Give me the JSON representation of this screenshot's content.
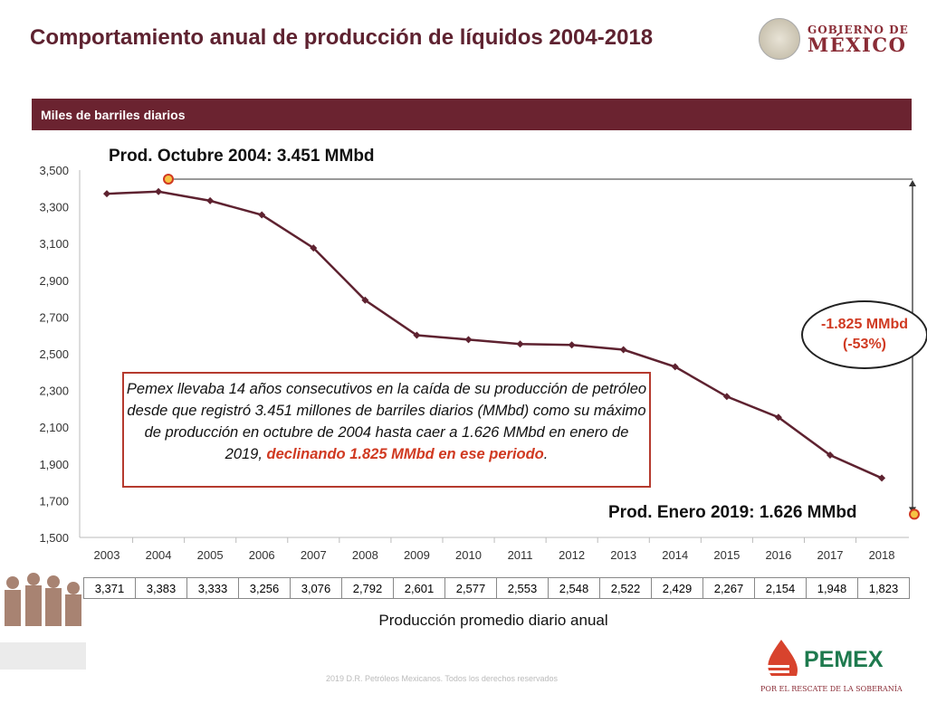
{
  "header": {
    "title": "Comportamiento anual de producción de líquidos 2004-2018",
    "gov_line1": "GOBIERNO DE",
    "gov_line2": "MÉXICO"
  },
  "band_label": "Miles de barriles diarios",
  "annotations": {
    "peak": "Prod. Octubre 2004: 3.451 MMbd",
    "latest": "Prod. Enero 2019: 1.626 MMbd",
    "decline_1": "-1.825 MMbd",
    "decline_2": "(-53%)",
    "box": [
      {
        "t": "Pemex llevaba 14 años consecutivos en la caída de su producción de petróleo desde que registró ",
        "s": ""
      },
      {
        "t": "3.451 millones de barriles diarios (MMbd)",
        "s": "b"
      },
      {
        "t": " como su máximo de producción ",
        "s": ""
      },
      {
        "t": "en octubre de 2004",
        "s": "b"
      },
      {
        "t": " hasta caer a ",
        "s": ""
      },
      {
        "t": "1.626 MMbd en enero de 2019",
        "s": "b"
      },
      {
        "t": ", ",
        "s": ""
      },
      {
        "t": "declinando 1.825 MMbd en ese periodo",
        "s": "red"
      },
      {
        "t": ".",
        "s": ""
      }
    ]
  },
  "chart_data": {
    "type": "line",
    "categories": [
      "2003",
      "2004",
      "2005",
      "2006",
      "2007",
      "2008",
      "2009",
      "2010",
      "2011",
      "2012",
      "2013",
      "2014",
      "2015",
      "2016",
      "2017",
      "2018"
    ],
    "values": [
      3371,
      3383,
      3333,
      3256,
      3076,
      2792,
      2601,
      2577,
      2553,
      2548,
      2522,
      2429,
      2267,
      2154,
      1948,
      1823
    ],
    "table_labels": [
      "3,371",
      "3,383",
      "3,333",
      "3,256",
      "3,076",
      "2,792",
      "2,601",
      "2,577",
      "2,553",
      "2,548",
      "2,522",
      "2,429",
      "2,267",
      "2,154",
      "1,948",
      "1,823"
    ],
    "ylim": [
      1500,
      3500
    ],
    "yticks": [
      "1,500",
      "1,700",
      "1,900",
      "2,100",
      "2,300",
      "2,500",
      "2,700",
      "2,900",
      "3,100",
      "3,300",
      "3,500"
    ],
    "xlabel": "Producción promedio diario anual",
    "ylabel": "Miles de barriles diarios",
    "grid": false,
    "line_color": "#5e2230",
    "highlight_points": [
      {
        "label": "Oct 2004",
        "value": 3451
      },
      {
        "label": "Ene 2019",
        "value": 1626
      }
    ]
  },
  "footer": {
    "copyright": "2019 D.R. Petróleos Mexicanos. Todos los derechos reservados",
    "pemex": "PEMEX",
    "pemex_tagline": "POR EL RESCATE DE LA SOBERANÍA"
  }
}
